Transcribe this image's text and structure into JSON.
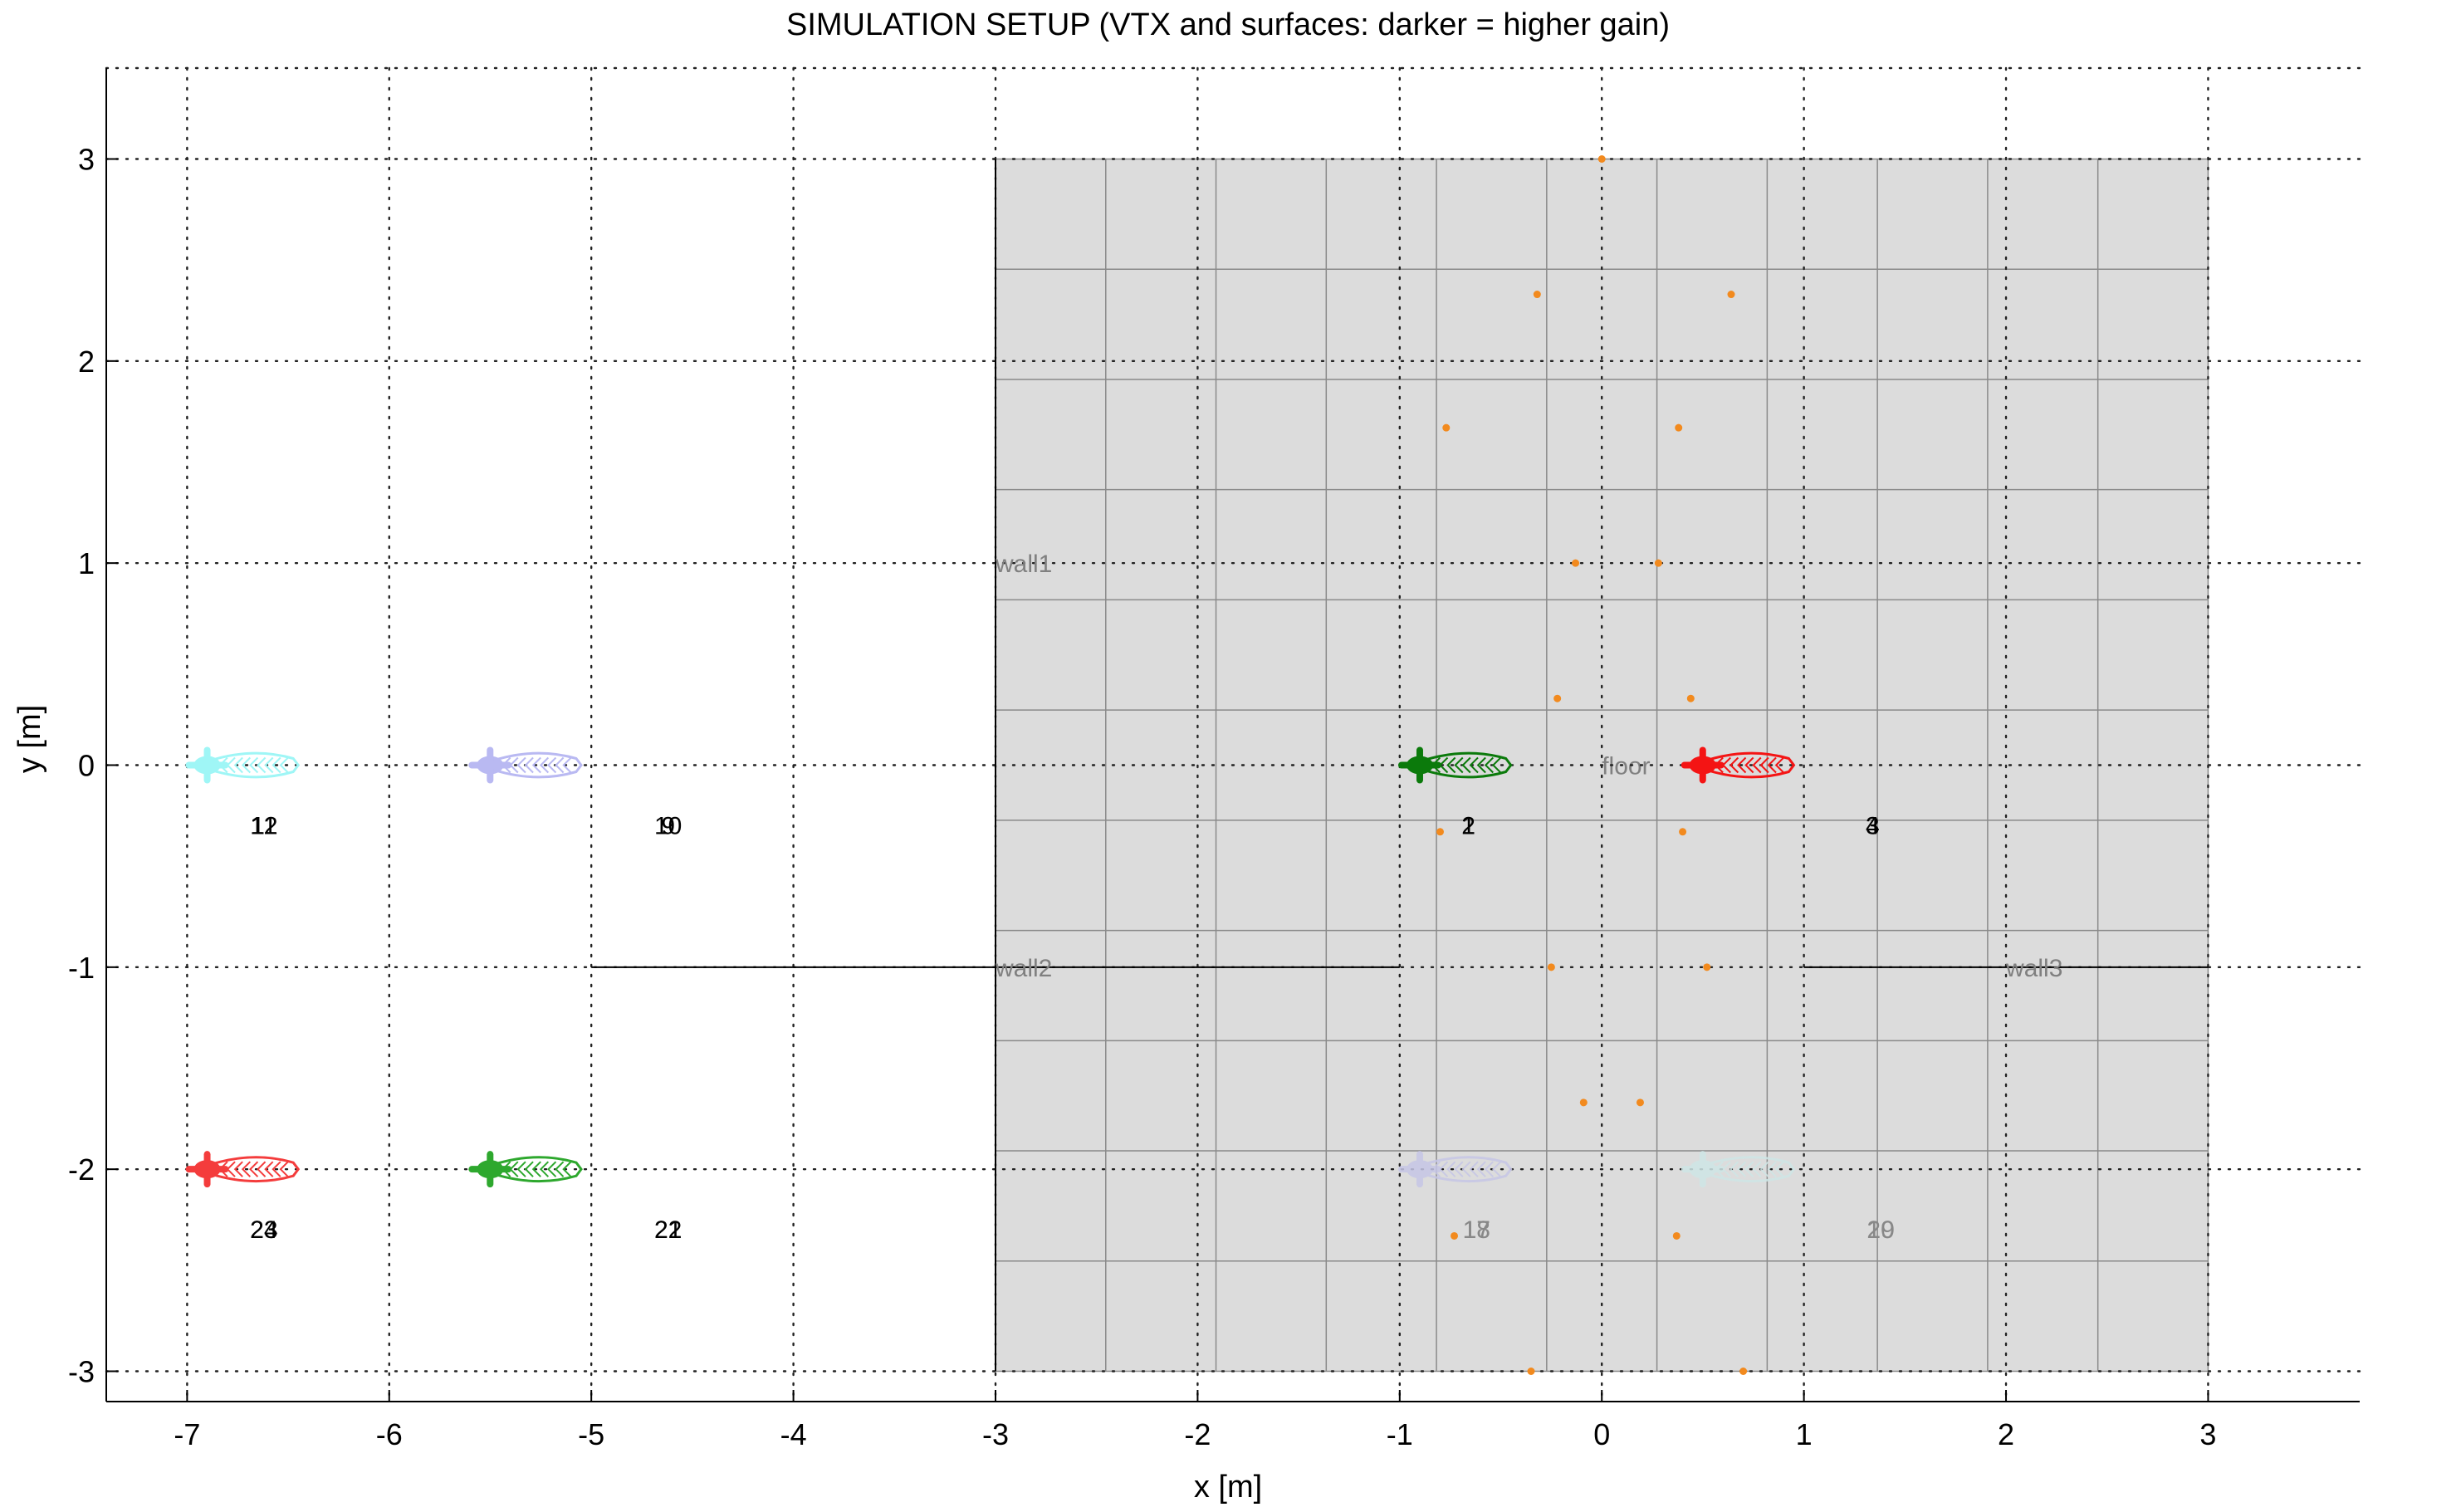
{
  "chart_data": {
    "type": "scatter",
    "title": "SIMULATION SETUP (VTX and surfaces: darker = higher gain)",
    "xlabel": "x [m]",
    "ylabel": "y [m]",
    "xlim": [
      -7.4,
      3.75
    ],
    "ylim": [
      -3.15,
      3.45
    ],
    "xticks": [
      -7,
      -6,
      -5,
      -4,
      -3,
      -2,
      -1,
      0,
      1,
      2,
      3
    ],
    "yticks": [
      -3,
      -2,
      -1,
      0,
      1,
      2,
      3
    ],
    "xtick_labels": [
      "-7",
      "-6",
      "-5",
      "-4",
      "-3",
      "-2",
      "-1",
      "0",
      "1",
      "2",
      "3"
    ],
    "ytick_labels": [
      "-3",
      "-2",
      "-1",
      "0",
      "1",
      "2",
      "3"
    ],
    "grid": true,
    "grid_style": "dotted",
    "floor": {
      "label": "floor",
      "x_range": [
        -3,
        3
      ],
      "y_range": [
        -3,
        3
      ],
      "x_divisions": 11,
      "y_divisions": 11,
      "fill": "#dcdcdc",
      "line_color": "#8a8a8a",
      "label_pos": [
        0,
        0
      ]
    },
    "walls": [
      {
        "label": "wall1",
        "x": [
          -3,
          -3
        ],
        "y": [
          -3,
          3
        ],
        "label_pos": [
          -3,
          1
        ]
      },
      {
        "label": "wall2",
        "x": [
          -5,
          -1
        ],
        "y": [
          -1,
          -1
        ],
        "label_pos": [
          -3,
          -1
        ]
      },
      {
        "label": "wall3",
        "x": [
          1,
          3
        ],
        "y": [
          -1,
          -1
        ],
        "label_pos": [
          2,
          -1
        ]
      }
    ],
    "vertices": [
      {
        "x": 0,
        "y": 3
      },
      {
        "x": -0.32,
        "y": 2.33
      },
      {
        "x": 0.64,
        "y": 2.33
      },
      {
        "x": -0.77,
        "y": 1.67
      },
      {
        "x": 0.38,
        "y": 1.67
      },
      {
        "x": -0.13,
        "y": 1
      },
      {
        "x": 0.28,
        "y": 1
      },
      {
        "x": -0.22,
        "y": 0.33
      },
      {
        "x": 0.44,
        "y": 0.33
      },
      {
        "x": -0.8,
        "y": -0.33
      },
      {
        "x": 0.4,
        "y": -0.33
      },
      {
        "x": -0.25,
        "y": -1
      },
      {
        "x": 0.52,
        "y": -1
      },
      {
        "x": -0.09,
        "y": -1.67
      },
      {
        "x": 0.19,
        "y": -1.67
      },
      {
        "x": -0.73,
        "y": -2.33
      },
      {
        "x": 0.37,
        "y": -2.33
      },
      {
        "x": -0.35,
        "y": -3
      },
      {
        "x": 0.7,
        "y": -3
      }
    ],
    "vertex_color": "#f28a1e",
    "sources": [
      {
        "x": -0.7,
        "y": 0,
        "color": "#0b7a0b",
        "opacity": 1,
        "ids": [
          "1",
          "2"
        ],
        "label_pos": [
          -0.66,
          -0.3
        ]
      },
      {
        "x": 0.7,
        "y": 0,
        "color": "#f41414",
        "opacity": 1,
        "ids": [
          "3",
          "4"
        ],
        "label_pos": [
          1.34,
          -0.3
        ]
      },
      {
        "x": -6.7,
        "y": 0,
        "color": "#9ff6f6",
        "opacity": 1,
        "ids": [
          "11",
          "12"
        ],
        "label_pos": [
          -6.62,
          -0.3
        ]
      },
      {
        "x": -5.3,
        "y": 0,
        "color": "#b9b9f2",
        "opacity": 1,
        "ids": [
          "9",
          "10"
        ],
        "label_pos": [
          -4.62,
          -0.3
        ]
      },
      {
        "x": -6.7,
        "y": -2,
        "color": "#f43c3c",
        "opacity": 1,
        "ids": [
          "23",
          "24"
        ],
        "label_pos": [
          -6.62,
          -2.3
        ]
      },
      {
        "x": -5.3,
        "y": -2,
        "color": "#2ea82e",
        "opacity": 1,
        "ids": [
          "21",
          "22"
        ],
        "label_pos": [
          -4.62,
          -2.3
        ]
      },
      {
        "x": -0.7,
        "y": -2,
        "color": "#c6c6e6",
        "opacity": 0.85,
        "ids": [
          "17",
          "18"
        ],
        "label_pos": [
          -0.62,
          -2.3
        ],
        "faded": true
      },
      {
        "x": 0.7,
        "y": -2,
        "color": "#cfe6e6",
        "opacity": 0.85,
        "ids": [
          "19",
          "20"
        ],
        "label_pos": [
          1.38,
          -2.3
        ],
        "faded": true
      }
    ]
  }
}
